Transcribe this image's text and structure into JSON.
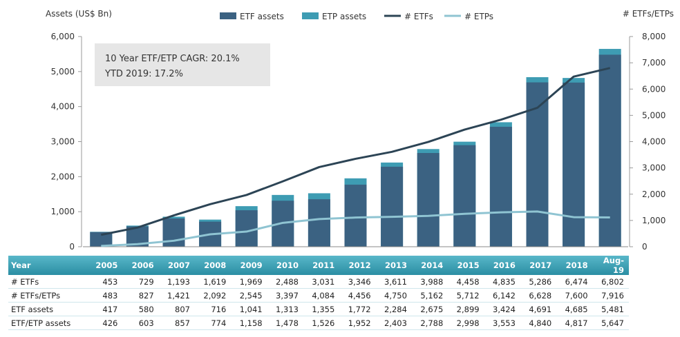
{
  "chart_data": {
    "type": "bar",
    "title": "",
    "left_axis_label": "Assets (US$ Bn)",
    "right_axis_label": "# ETFs/ETPs",
    "left_ylim": [
      0,
      6000
    ],
    "right_ylim": [
      0,
      8000
    ],
    "left_ticks": [
      "0",
      "1,000",
      "2,000",
      "3,000",
      "4,000",
      "5,000",
      "6,000"
    ],
    "right_ticks": [
      "0",
      "1,000",
      "2,000",
      "3,000",
      "4,000",
      "5,000",
      "6,000",
      "7,000",
      "8,000"
    ],
    "categories": [
      "2005",
      "2006",
      "2007",
      "2008",
      "2009",
      "2010",
      "2011",
      "2012",
      "2013",
      "2014",
      "2015",
      "2016",
      "2017",
      "2018",
      "Aug-19"
    ],
    "series": [
      {
        "name": "ETF assets",
        "kind": "bar",
        "axis": "left",
        "color": "#3b6282",
        "values": [
          417,
          580,
          807,
          716,
          1041,
          1313,
          1355,
          1772,
          2284,
          2675,
          2899,
          3424,
          4691,
          4685,
          5481
        ]
      },
      {
        "name": "ETP assets",
        "kind": "bar",
        "axis": "left",
        "color": "#3e9cb3",
        "values": [
          426,
          603,
          857,
          774,
          1158,
          1478,
          1526,
          1952,
          2403,
          2788,
          2998,
          3553,
          4840,
          4817,
          5647
        ]
      },
      {
        "name": "# ETFs",
        "kind": "line",
        "axis": "right",
        "color": "#2c4455",
        "values": [
          453,
          729,
          1193,
          1619,
          1969,
          2488,
          3031,
          3346,
          3611,
          3988,
          4458,
          4835,
          5286,
          6474,
          6802
        ]
      },
      {
        "name": "# ETPs",
        "kind": "line",
        "axis": "right",
        "color": "#8fc4d2",
        "values": [
          30,
          98,
          228,
          473,
          576,
          909,
          1053,
          1110,
          1139,
          1174,
          1254,
          1307,
          1342,
          1126,
          1114
        ]
      }
    ],
    "legend": [
      "ETF assets",
      "ETP assets",
      "# ETFs",
      "# ETPs"
    ],
    "legend_position": "top"
  },
  "callout": {
    "line1": "10 Year ETF/ETP CAGR: 20.1%",
    "line2": "YTD 2019: 17.2%"
  },
  "table": {
    "header": "Year",
    "rows": [
      {
        "label": "# ETFs",
        "values": [
          "453",
          "729",
          "1,193",
          "1,619",
          "1,969",
          "2,488",
          "3,031",
          "3,346",
          "3,611",
          "3,988",
          "4,458",
          "4,835",
          "5,286",
          "6,474",
          "6,802"
        ]
      },
      {
        "label": "# ETFs/ETPs",
        "values": [
          "483",
          "827",
          "1,421",
          "2,092",
          "2,545",
          "3,397",
          "4,084",
          "4,456",
          "4,750",
          "5,162",
          "5,712",
          "6,142",
          "6,628",
          "7,600",
          "7,916"
        ]
      },
      {
        "label": "ETF assets",
        "values": [
          "417",
          "580",
          "807",
          "716",
          "1,041",
          "1,313",
          "1,355",
          "1,772",
          "2,284",
          "2,675",
          "2,899",
          "3,424",
          "4,691",
          "4,685",
          "5,481"
        ]
      },
      {
        "label": "ETF/ETP assets",
        "values": [
          "426",
          "603",
          "857",
          "774",
          "1,158",
          "1,478",
          "1,526",
          "1,952",
          "2,403",
          "2,788",
          "2,998",
          "3,553",
          "4,840",
          "4,817",
          "5,647"
        ]
      }
    ]
  }
}
